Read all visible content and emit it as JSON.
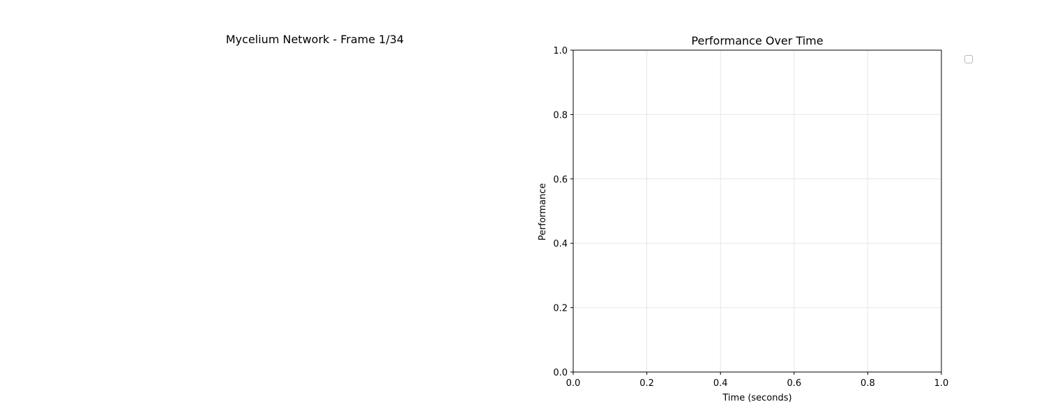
{
  "left_panel": {
    "title": "Mycelium Network - Frame 1/34"
  },
  "chart_data": {
    "type": "line",
    "title": "Performance Over Time",
    "xlabel": "Time (seconds)",
    "ylabel": "Performance",
    "xlim": [
      0,
      1
    ],
    "ylim": [
      0,
      1
    ],
    "xticks": [
      "0.0",
      "0.2",
      "0.4",
      "0.6",
      "0.8",
      "1.0"
    ],
    "yticks": [
      "0.0",
      "0.2",
      "0.4",
      "0.6",
      "0.8",
      "1.0"
    ],
    "grid": true,
    "legend": "top-right, outside axes (empty)",
    "series": []
  }
}
